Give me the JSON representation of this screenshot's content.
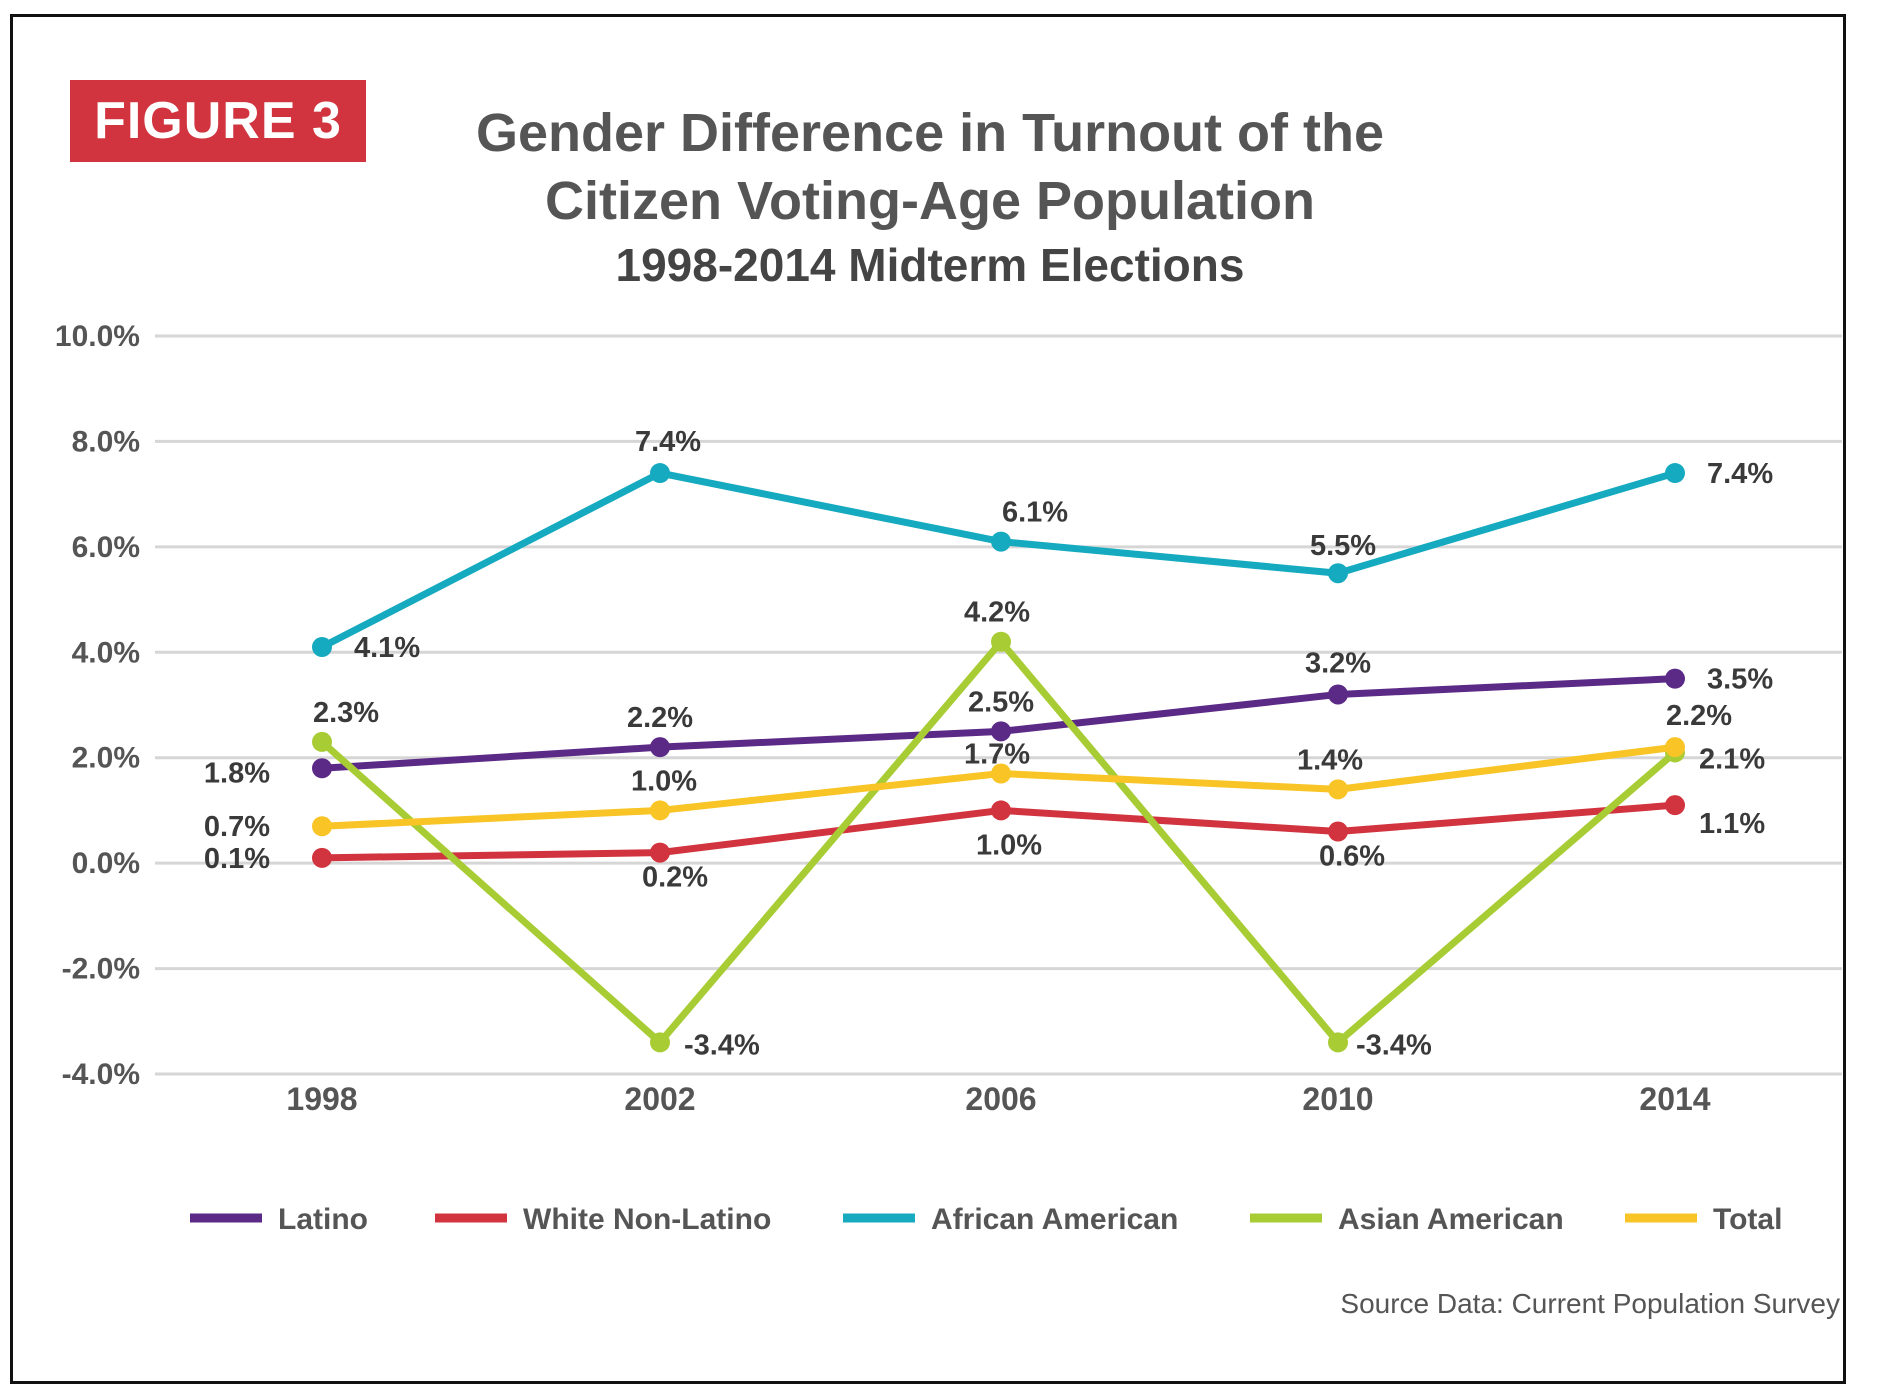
{
  "figure_label": "FIGURE 3",
  "title_line1": "Gender Difference in Turnout of the",
  "title_line2": "Citizen Voting-Age Population",
  "subtitle": "1998-2014 Midterm Elections",
  "source": "Source Data: Current Population Survey",
  "chart_data": {
    "type": "line",
    "title": "Gender Difference in Turnout of the Citizen Voting-Age Population 1998-2014 Midterm Elections",
    "xlabel": "",
    "ylabel": "",
    "categories": [
      "1998",
      "2002",
      "2006",
      "2010",
      "2014"
    ],
    "ylim": [
      -4.0,
      10.0
    ],
    "yticks": [
      -4.0,
      -2.0,
      0.0,
      2.0,
      4.0,
      6.0,
      8.0,
      10.0
    ],
    "ytick_labels": [
      "-4.0%",
      "-2.0%",
      "0.0%",
      "2.0%",
      "4.0%",
      "6.0%",
      "8.0%",
      "10.0%"
    ],
    "grid": true,
    "legend_position": "bottom",
    "series": [
      {
        "name": "Latino",
        "color": "#5b2a86",
        "values": [
          1.8,
          2.2,
          2.5,
          3.2,
          3.5
        ],
        "labels": [
          "1.8%",
          "2.2%",
          "2.5%",
          "3.2%",
          "3.5%"
        ]
      },
      {
        "name": "White Non-Latino",
        "color": "#d1343e",
        "values": [
          0.1,
          0.2,
          1.0,
          0.6,
          1.1
        ],
        "labels": [
          "0.1%",
          "0.2%",
          "1.0%",
          "0.6%",
          "1.1%"
        ]
      },
      {
        "name": "African American",
        "color": "#15aabf",
        "values": [
          4.1,
          7.4,
          6.1,
          5.5,
          7.4
        ],
        "labels": [
          "4.1%",
          "7.4%",
          "6.1%",
          "5.5%",
          "7.4%"
        ]
      },
      {
        "name": "Asian American",
        "color": "#a8cc34",
        "values": [
          2.3,
          -3.4,
          4.2,
          -3.4,
          2.1
        ],
        "labels": [
          "2.3%",
          "-3.4%",
          "4.2%",
          "-3.4%",
          "2.1%"
        ]
      },
      {
        "name": "Total",
        "color": "#f8c426",
        "values": [
          0.7,
          1.0,
          1.7,
          1.4,
          2.2
        ],
        "labels": [
          "0.7%",
          "1.0%",
          "1.7%",
          "1.4%",
          "2.2%"
        ]
      }
    ]
  }
}
